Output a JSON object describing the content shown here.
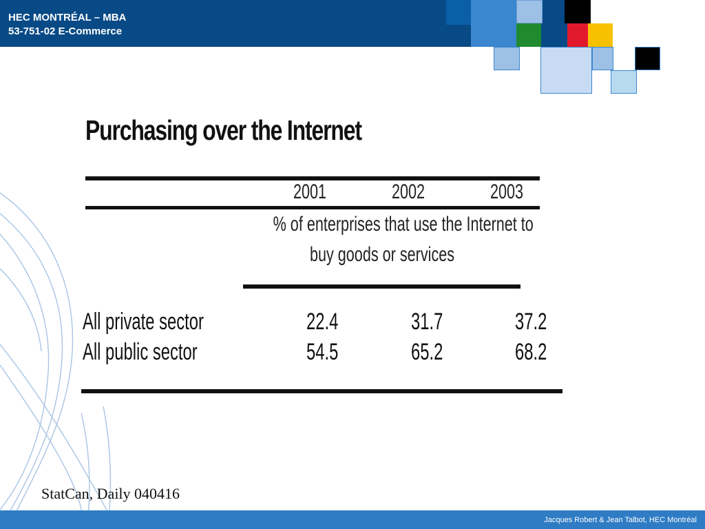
{
  "header": {
    "line1": "HEC MONTRÉAL – MBA",
    "line2": "53-751-02 E-Commerce"
  },
  "slide": {
    "title": "Purchasing over the Internet"
  },
  "table": {
    "years": [
      "2001",
      "2002",
      "2003"
    ],
    "measure_line1": "% of enterprises that use the Internet to",
    "measure_line2": "buy goods or services",
    "rows": [
      {
        "label": "All private sector",
        "values": [
          "22.4",
          "31.7",
          "37.2"
        ]
      },
      {
        "label": "All public sector",
        "values": [
          "54.5",
          "65.2",
          "68.2"
        ]
      }
    ]
  },
  "source_note": "StatCan, Daily 040416",
  "footer": {
    "credit": "Jacques Robert & Jean Talbot,  HEC Montréal"
  },
  "colors": {
    "header_blue": "#084a86",
    "footer_blue": "#2f7cc4",
    "mosaic_green": "#1f8a2e",
    "mosaic_red": "#e2192c",
    "mosaic_yellow": "#f8c100"
  }
}
